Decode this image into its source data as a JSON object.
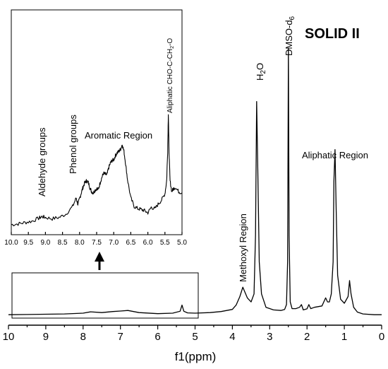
{
  "chart_data": [
    {
      "type": "line",
      "title": "SOLID II",
      "xlabel": "f1(ppm)",
      "ylabel": "",
      "xlim": [
        10,
        0
      ],
      "x_ticks": [
        10,
        9,
        8,
        7,
        6,
        5,
        4,
        3,
        2,
        1,
        0
      ],
      "grid": false,
      "annotations": {
        "methoxyl": "Methoxyl Region",
        "h2o_main": "H",
        "h2o_sub": "2",
        "h2o_tail": "O",
        "dmso_main": "DMSO-d",
        "dmso_sub": "6",
        "aliphatic": "Aliphatic Region"
      },
      "series": [
        {
          "x": [
            10.0,
            9.5,
            9.0,
            8.5,
            8.0,
            7.8,
            7.5,
            7.2,
            7.0,
            6.8,
            6.5,
            6.0,
            5.6,
            5.4,
            5.35,
            5.3,
            5.2,
            5.0,
            4.6,
            4.3,
            4.0,
            3.9,
            3.8,
            3.72,
            3.6,
            3.5,
            3.42,
            3.38,
            3.35,
            3.32,
            3.28,
            3.22,
            3.1,
            2.9,
            2.7,
            2.6,
            2.55,
            2.52,
            2.5,
            2.48,
            2.45,
            2.4,
            2.3,
            2.2,
            2.15,
            2.1,
            2.0,
            1.95,
            1.9,
            1.8,
            1.6,
            1.5,
            1.45,
            1.4,
            1.35,
            1.3,
            1.28,
            1.25,
            1.22,
            1.18,
            1.1,
            1.0,
            0.9,
            0.86,
            0.82,
            0.75,
            0.65,
            0.5,
            0.2,
            0.0
          ],
          "y": [
            0.2,
            0.3,
            0.4,
            0.5,
            0.8,
            1.3,
            1.0,
            1.4,
            1.6,
            1.8,
            1.0,
            0.6,
            0.8,
            1.5,
            3.8,
            1.5,
            0.9,
            0.8,
            1.0,
            1.4,
            2.2,
            3.8,
            7.0,
            10.5,
            6.5,
            5.0,
            8.0,
            30.0,
            80.0,
            55.0,
            20.0,
            8.0,
            3.0,
            2.0,
            1.8,
            2.2,
            4.0,
            20.0,
            100.0,
            30.0,
            5.0,
            2.5,
            2.5,
            3.0,
            4.0,
            2.0,
            2.4,
            4.0,
            2.5,
            3.0,
            3.5,
            6.5,
            5.0,
            5.0,
            8.0,
            20.0,
            50.0,
            62.0,
            40.0,
            15.0,
            6.0,
            4.5,
            7.0,
            13.0,
            8.0,
            3.0,
            1.2,
            0.5,
            0.2,
            0.2
          ]
        }
      ]
    },
    {
      "type": "line",
      "title": "",
      "xlabel": "",
      "ylabel": "",
      "xlim": [
        10,
        5
      ],
      "x_ticks": [
        "10.0",
        "9.5",
        "9.0",
        "8.5",
        "8.0",
        "7.5",
        "7.0",
        "6.5",
        "6.0",
        "5.5",
        "5.0"
      ],
      "grid": false,
      "annotations": {
        "aldehyde": "Aldehyde groups",
        "phenol": "Phenol groups",
        "aromatic": "Aromatic Region",
        "aliphatic_ether": "Aliphatic CHO-C-CH",
        "aliphatic_ether_sub": "2",
        "aliphatic_ether_tail": "-O"
      },
      "series": [
        {
          "x": [
            10.0,
            9.8,
            9.6,
            9.4,
            9.2,
            9.1,
            9.0,
            8.8,
            8.6,
            8.4,
            8.2,
            8.1,
            8.05,
            8.0,
            7.95,
            7.9,
            7.85,
            7.8,
            7.75,
            7.7,
            7.65,
            7.6,
            7.55,
            7.5,
            7.45,
            7.4,
            7.35,
            7.3,
            7.25,
            7.2,
            7.15,
            7.1,
            7.05,
            7.0,
            6.95,
            6.9,
            6.85,
            6.8,
            6.75,
            6.7,
            6.65,
            6.6,
            6.5,
            6.4,
            6.3,
            6.2,
            6.1,
            6.0,
            5.9,
            5.8,
            5.7,
            5.6,
            5.5,
            5.45,
            5.42,
            5.4,
            5.38,
            5.35,
            5.3,
            5.25,
            5.2,
            5.1,
            5.0
          ],
          "y": [
            0.7,
            0.9,
            1.2,
            1.5,
            2.2,
            2.6,
            2.4,
            2.1,
            2.4,
            3.2,
            5.0,
            7.0,
            5.5,
            6.8,
            8.2,
            9.5,
            10.6,
            11.0,
            10.8,
            9.5,
            8.5,
            8.2,
            8.8,
            9.2,
            9.0,
            10.5,
            11.8,
            12.8,
            12.6,
            12.4,
            14.0,
            15.2,
            15.8,
            16.0,
            17.0,
            17.6,
            18.0,
            18.5,
            19.6,
            18.0,
            15.0,
            11.5,
            7.0,
            5.0,
            4.5,
            4.3,
            4.0,
            3.5,
            4.8,
            4.4,
            5.5,
            6.5,
            8.0,
            11.0,
            18.0,
            27.0,
            18.0,
            11.0,
            8.5,
            9.2,
            9.5,
            8.5,
            8.2
          ]
        }
      ]
    }
  ]
}
